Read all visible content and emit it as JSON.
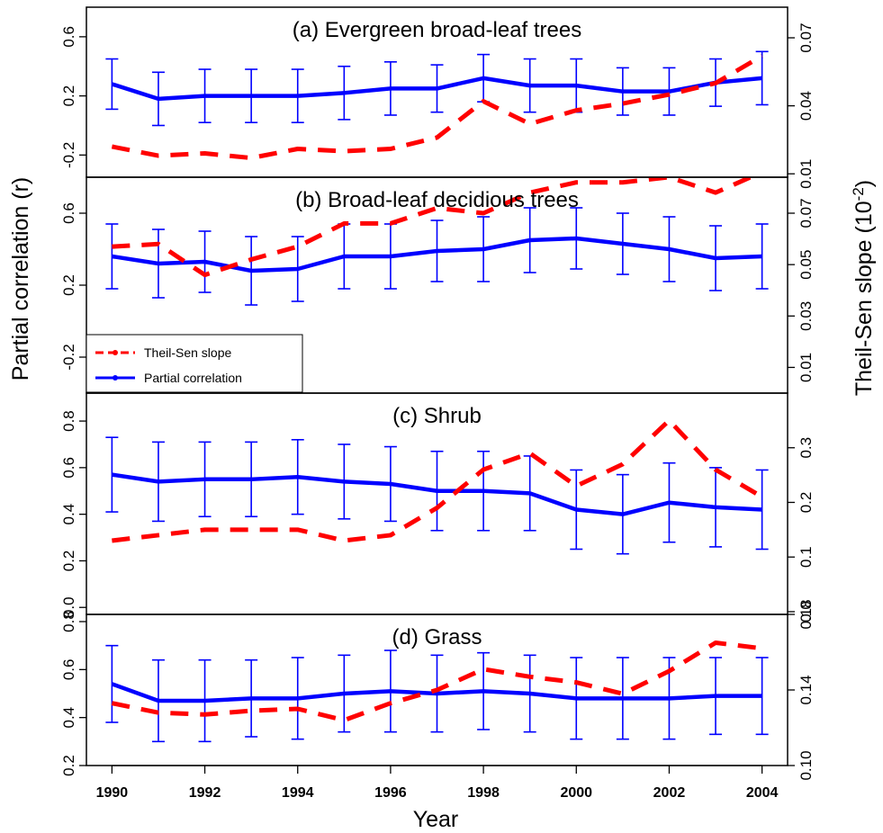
{
  "chart_data": {
    "type": "line",
    "xlabel": "Year",
    "ylabel_left": "Partial correlation (r)",
    "ylabel_right": "Theil-Sen slope (10",
    "ylabel_right_exp": "-2",
    "ylabel_right_close": ")",
    "x": [
      1990,
      1991,
      1992,
      1993,
      1994,
      1995,
      1996,
      1997,
      1998,
      1999,
      2000,
      2001,
      2002,
      2003,
      2004
    ],
    "x_ticks": [
      1990,
      1992,
      1994,
      1996,
      1998,
      2000,
      2002,
      2004
    ],
    "x_tick_labels": [
      "1990",
      "1992",
      "1994",
      "1996",
      "1998",
      "2000",
      "2002",
      "2004"
    ],
    "legend": {
      "placement": "lower-left of panel (b)",
      "entries": [
        {
          "label": "Theil-Sen slope",
          "color": "#ff0000",
          "style": "dashed"
        },
        {
          "label": "Partial correlation",
          "color": "#0000ff",
          "style": "solid"
        }
      ]
    },
    "colors": {
      "correlation": "#0000ff",
      "slope": "#ff0000"
    },
    "panels": [
      {
        "title": "(a) Evergreen broad-leaf trees",
        "left_ylim": [
          -0.35,
          0.8
        ],
        "left_ticks": [
          -0.2,
          0.2,
          0.6
        ],
        "left_tick_labels": [
          "-0.2",
          "0.2",
          "0.6"
        ],
        "right_ylim": [
          0.0085,
          0.0835
        ],
        "right_ticks": [
          0.01,
          0.04,
          0.07
        ],
        "right_tick_labels": [
          "0.01",
          "0.04",
          "0.07"
        ],
        "series": [
          {
            "name": "Partial correlation",
            "values": [
              0.28,
              0.18,
              0.2,
              0.2,
              0.2,
              0.22,
              0.25,
              0.25,
              0.32,
              0.27,
              0.27,
              0.23,
              0.23,
              0.29,
              0.32
            ],
            "error": [
              0.17,
              0.18,
              0.18,
              0.18,
              0.18,
              0.18,
              0.18,
              0.16,
              0.16,
              0.18,
              0.18,
              0.16,
              0.16,
              0.16,
              0.18
            ]
          },
          {
            "name": "Theil-Sen slope",
            "values": [
              0.022,
              0.018,
              0.019,
              0.017,
              0.021,
              0.02,
              0.021,
              0.026,
              0.042,
              0.032,
              0.038,
              0.041,
              0.045,
              0.05,
              0.062
            ]
          }
        ]
      },
      {
        "title": "(b) Broad-leaf decidious trees",
        "left_ylim": [
          -0.4,
          0.8
        ],
        "left_ticks": [
          -0.2,
          0.2,
          0.6
        ],
        "left_tick_labels": [
          "-0.2",
          "0.2",
          "0.6"
        ],
        "right_ylim": [
          0.0,
          0.084
        ],
        "right_ticks": [
          0.01,
          0.03,
          0.05,
          0.07
        ],
        "right_tick_labels": [
          "0.01",
          "0.03",
          "0.05",
          "0.07"
        ],
        "series": [
          {
            "name": "Partial correlation",
            "values": [
              0.36,
              0.32,
              0.33,
              0.28,
              0.29,
              0.36,
              0.36,
              0.39,
              0.4,
              0.45,
              0.46,
              0.43,
              0.4,
              0.35,
              0.36
            ],
            "error": [
              0.18,
              0.19,
              0.17,
              0.19,
              0.18,
              0.18,
              0.18,
              0.17,
              0.18,
              0.18,
              0.17,
              0.17,
              0.18,
              0.18,
              0.18
            ]
          },
          {
            "name": "Theil-Sen slope",
            "values": [
              0.057,
              0.058,
              0.046,
              0.052,
              0.057,
              0.066,
              0.066,
              0.072,
              0.07,
              0.078,
              0.082,
              0.082,
              0.084,
              0.078,
              0.086
            ]
          }
        ]
      },
      {
        "title": "(c) Shrub",
        "left_ylim": [
          -0.03,
          0.92
        ],
        "left_ticks": [
          0.0,
          0.2,
          0.4,
          0.6,
          0.8
        ],
        "left_tick_labels": [
          "0.0",
          "0.2",
          "0.4",
          "0.6",
          "0.8"
        ],
        "right_ylim": [
          -0.005,
          0.4
        ],
        "right_ticks": [
          0.0,
          0.1,
          0.2,
          0.3
        ],
        "right_tick_labels": [
          "0.0",
          "0.1",
          "0.2",
          "0.3"
        ],
        "series": [
          {
            "name": "Partial correlation",
            "values": [
              0.57,
              0.54,
              0.55,
              0.55,
              0.56,
              0.54,
              0.53,
              0.5,
              0.5,
              0.49,
              0.42,
              0.4,
              0.45,
              0.43,
              0.42
            ],
            "error": [
              0.16,
              0.17,
              0.16,
              0.16,
              0.16,
              0.16,
              0.16,
              0.17,
              0.17,
              0.16,
              0.17,
              0.17,
              0.17,
              0.17,
              0.17
            ]
          },
          {
            "name": "Theil-Sen slope",
            "values": [
              0.13,
              0.14,
              0.15,
              0.15,
              0.15,
              0.13,
              0.14,
              0.19,
              0.26,
              0.29,
              0.23,
              0.27,
              0.35,
              0.26,
              0.21
            ]
          }
        ]
      },
      {
        "title": "(d) Grass",
        "left_ylim": [
          0.2,
          0.83
        ],
        "left_ticks": [
          0.2,
          0.4,
          0.6,
          0.8
        ],
        "left_tick_labels": [
          "0.2",
          "0.4",
          "0.6",
          "0.8"
        ],
        "right_ylim": [
          0.1,
          0.18
        ],
        "right_ticks": [
          0.1,
          0.14,
          0.18
        ],
        "right_tick_labels": [
          "0.10",
          "0.14",
          "0.18"
        ],
        "series": [
          {
            "name": "Partial correlation",
            "values": [
              0.54,
              0.47,
              0.47,
              0.48,
              0.48,
              0.5,
              0.51,
              0.5,
              0.51,
              0.5,
              0.48,
              0.48,
              0.48,
              0.49,
              0.49
            ],
            "error": [
              0.16,
              0.17,
              0.17,
              0.16,
              0.17,
              0.16,
              0.17,
              0.16,
              0.16,
              0.16,
              0.17,
              0.17,
              0.17,
              0.16,
              0.16
            ]
          },
          {
            "name": "Theil-Sen slope",
            "values": [
              0.133,
              0.128,
              0.127,
              0.129,
              0.13,
              0.124,
              0.133,
              0.14,
              0.151,
              0.147,
              0.144,
              0.138,
              0.15,
              0.165,
              0.162
            ]
          }
        ]
      }
    ]
  }
}
